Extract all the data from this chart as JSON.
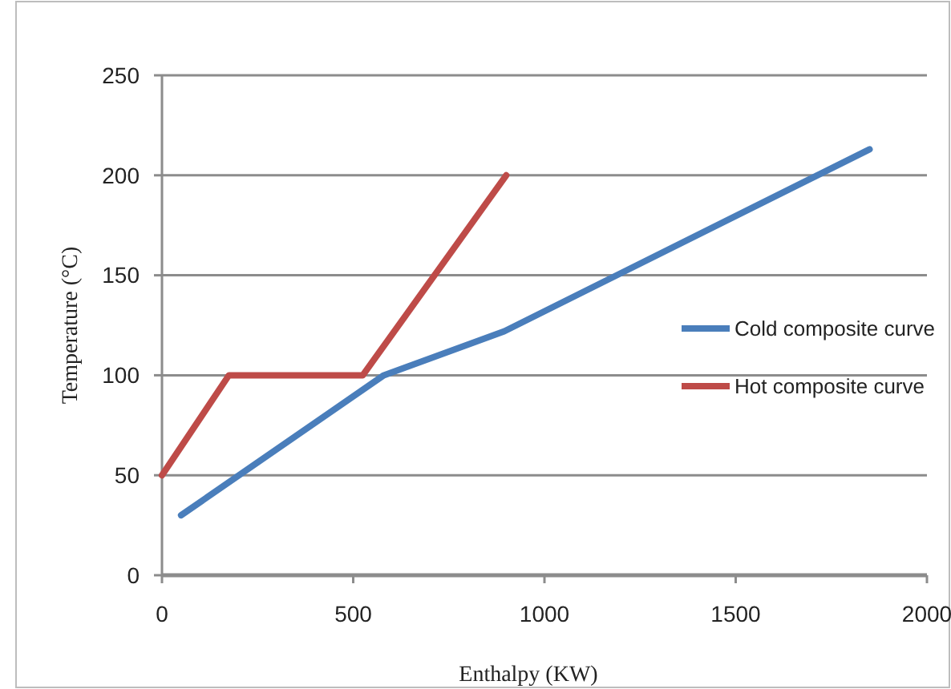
{
  "chart_data": {
    "type": "line",
    "xlabel": "Enthalpy (KW)",
    "ylabel": "Temperature (°C)",
    "xlim": [
      0,
      2000
    ],
    "xticks": [
      0,
      500,
      1000,
      1500,
      2000
    ],
    "ylim": [
      0,
      250
    ],
    "yticks": [
      0,
      50,
      100,
      150,
      200,
      250
    ],
    "grid": "y",
    "legend": "right",
    "marker": "none",
    "line_style": "solid",
    "series": [
      {
        "name": "Cold composite curve",
        "color": "#4a7ebb",
        "x": [
          50,
          580,
          895,
          1850
        ],
        "values": [
          30,
          100,
          122,
          213
        ]
      },
      {
        "name": "Hot composite curve",
        "color": "#be4b48",
        "x": [
          0,
          175,
          525,
          900
        ],
        "values": [
          50,
          100,
          100,
          200
        ]
      }
    ]
  }
}
